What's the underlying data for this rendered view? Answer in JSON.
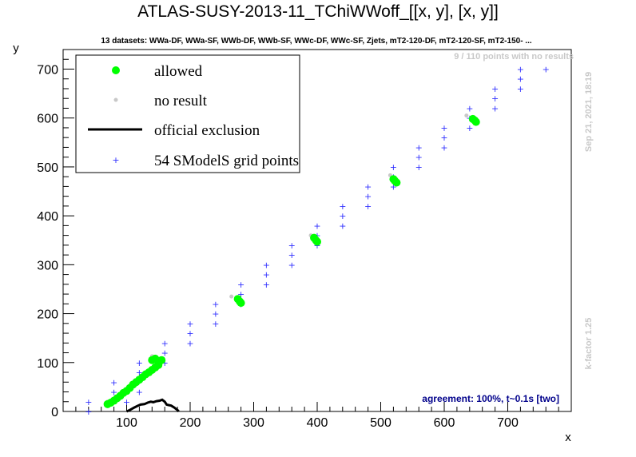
{
  "chart_data": {
    "type": "scatter",
    "title": "ATLAS-SUSY-2013-11_TChiWWoff_[[x, y], [x, y]]",
    "subtitle": "13 datasets: WWa-DF, WWa-SF, WWb-DF, WWb-SF, WWc-DF, WWc-SF, Zjets, mT2-120-DF, mT2-120-SF, mT2-150- ...",
    "xlabel": "x",
    "ylabel": "y",
    "xlim": [
      0,
      800
    ],
    "ylim": [
      0,
      740
    ],
    "xticks": [
      "100",
      "200",
      "300",
      "400",
      "500",
      "600",
      "700"
    ],
    "yticks": [
      "0",
      "100",
      "200",
      "300",
      "400",
      "500",
      "600",
      "700"
    ],
    "no_result_note": "9 / 110 points with no results",
    "timestamp": "Sep 21, 2021, 18:19",
    "kfactor": "k-factor 1.25",
    "agreement": "agreement: 100%, t~0.1s [two]",
    "legend": {
      "position": "top-left",
      "entries": [
        {
          "label": "allowed",
          "color": "#00ff00"
        },
        {
          "label": "no result",
          "color": "#c8c8c8"
        },
        {
          "label": "official exclusion",
          "color": "#000000"
        },
        {
          "label": "54 SModelS grid points",
          "color": "#0000ff"
        }
      ]
    },
    "series": [
      {
        "name": "allowed",
        "color": "#00ff00",
        "points": [
          [
            70,
            15
          ],
          [
            75,
            18
          ],
          [
            80,
            22
          ],
          [
            85,
            27
          ],
          [
            90,
            32
          ],
          [
            95,
            38
          ],
          [
            100,
            42
          ],
          [
            105,
            48
          ],
          [
            110,
            55
          ],
          [
            115,
            60
          ],
          [
            120,
            65
          ],
          [
            125,
            70
          ],
          [
            130,
            76
          ],
          [
            135,
            80
          ],
          [
            140,
            85
          ],
          [
            145,
            90
          ],
          [
            150,
            95
          ],
          [
            150,
            100
          ],
          [
            155,
            105
          ],
          [
            145,
            108
          ],
          [
            140,
            105
          ],
          [
            275,
            230
          ],
          [
            278,
            225
          ],
          [
            280,
            222
          ],
          [
            395,
            355
          ],
          [
            398,
            350
          ],
          [
            400,
            347
          ],
          [
            520,
            475
          ],
          [
            522,
            472
          ],
          [
            525,
            468
          ],
          [
            645,
            598
          ],
          [
            648,
            595
          ],
          [
            650,
            592
          ]
        ]
      },
      {
        "name": "no result",
        "color": "#c8c8c8",
        "points": [
          [
            140,
            113
          ],
          [
            145,
            110
          ],
          [
            265,
            235
          ],
          [
            390,
            360
          ],
          [
            515,
            483
          ],
          [
            635,
            605
          ],
          [
            70,
            20
          ],
          [
            100,
            45
          ],
          [
            130,
            80
          ]
        ]
      },
      {
        "name": "54 SModelS grid points",
        "color": "#0000ff",
        "points": [
          [
            40,
            0
          ],
          [
            40,
            20
          ],
          [
            80,
            40
          ],
          [
            80,
            60
          ],
          [
            120,
            80
          ],
          [
            120,
            100
          ],
          [
            160,
            100
          ],
          [
            160,
            120
          ],
          [
            160,
            140
          ],
          [
            200,
            140
          ],
          [
            200,
            160
          ],
          [
            200,
            180
          ],
          [
            240,
            180
          ],
          [
            240,
            200
          ],
          [
            240,
            220
          ],
          [
            280,
            220
          ],
          [
            280,
            240
          ],
          [
            280,
            260
          ],
          [
            320,
            260
          ],
          [
            320,
            280
          ],
          [
            320,
            300
          ],
          [
            360,
            300
          ],
          [
            360,
            320
          ],
          [
            360,
            340
          ],
          [
            400,
            340
          ],
          [
            400,
            360
          ],
          [
            400,
            380
          ],
          [
            440,
            380
          ],
          [
            440,
            400
          ],
          [
            440,
            420
          ],
          [
            480,
            420
          ],
          [
            480,
            440
          ],
          [
            480,
            460
          ],
          [
            520,
            460
          ],
          [
            520,
            480
          ],
          [
            520,
            500
          ],
          [
            560,
            500
          ],
          [
            560,
            520
          ],
          [
            560,
            540
          ],
          [
            600,
            540
          ],
          [
            600,
            560
          ],
          [
            600,
            580
          ],
          [
            640,
            580
          ],
          [
            640,
            600
          ],
          [
            640,
            620
          ],
          [
            680,
            620
          ],
          [
            680,
            640
          ],
          [
            680,
            660
          ],
          [
            720,
            660
          ],
          [
            720,
            680
          ],
          [
            720,
            700
          ],
          [
            760,
            700
          ],
          [
            100,
            20
          ],
          [
            120,
            40
          ]
        ]
      },
      {
        "name": "official exclusion",
        "color": "#000000",
        "line": [
          [
            100,
            0
          ],
          [
            105,
            3
          ],
          [
            112,
            8
          ],
          [
            118,
            12
          ],
          [
            122,
            14
          ],
          [
            128,
            15
          ],
          [
            133,
            18
          ],
          [
            138,
            20
          ],
          [
            142,
            19
          ],
          [
            147,
            21
          ],
          [
            152,
            22
          ],
          [
            156,
            24
          ],
          [
            160,
            20
          ],
          [
            163,
            14
          ],
          [
            166,
            13
          ],
          [
            170,
            12
          ],
          [
            175,
            8
          ],
          [
            180,
            3
          ],
          [
            182,
            0
          ]
        ]
      }
    ]
  }
}
